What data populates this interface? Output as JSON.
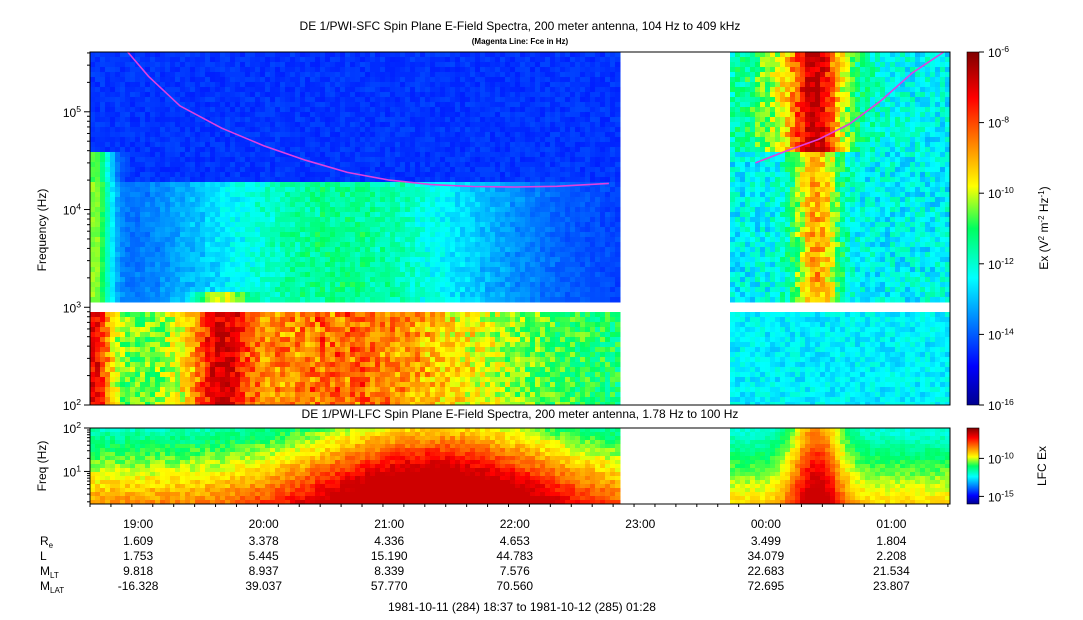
{
  "chart_data": [
    {
      "type": "heatmap",
      "title": "DE 1/PWI-SFC  Spin Plane E-Field Spectra, 200 meter antenna, 104 Hz to 409 kHz",
      "subtitle": "(Magenta Line: Fce in Hz)",
      "ylabel": "Frequency (Hz)",
      "yscale": "log",
      "ylim": [
        100,
        409000
      ],
      "y_ticks": [
        {
          "value": 100,
          "base": "10",
          "exp": "2"
        },
        {
          "value": 1000,
          "base": "10",
          "exp": "3"
        },
        {
          "value": 10000,
          "base": "10",
          "exp": "4"
        },
        {
          "value": 100000,
          "base": "10",
          "exp": "5"
        }
      ],
      "colorbar": {
        "label_parts": [
          "Ex (V",
          "2",
          " m",
          "-2",
          " Hz",
          "-1",
          ")"
        ],
        "scale": "log",
        "range": [
          1e-16,
          1e-06
        ],
        "ticks": [
          {
            "value": 1e-06,
            "base": "10",
            "exp": "-6"
          },
          {
            "value": 1e-08,
            "base": "10",
            "exp": "-8"
          },
          {
            "value": 1e-10,
            "base": "10",
            "exp": "-10"
          },
          {
            "value": 1e-12,
            "base": "10",
            "exp": "-12"
          },
          {
            "value": 1e-14,
            "base": "10",
            "exp": "-14"
          },
          {
            "value": 1e-16,
            "base": "10",
            "exp": "-16"
          }
        ]
      },
      "data_gaps": [
        [
          "22:48",
          "00:00"
        ]
      ],
      "fce_line_color": "#e040e0",
      "fce_line": {
        "segment_1": {
          "t": [
            "18:55",
            "19:05",
            "19:20",
            "19:40",
            "20:00",
            "20:20",
            "20:40",
            "21:00",
            "21:20",
            "21:40",
            "22:00",
            "22:20",
            "22:45"
          ],
          "f": [
            409000,
            230000,
            115000,
            68000,
            45000,
            32000,
            24000,
            20000,
            18000,
            17200,
            17000,
            17300,
            18500
          ]
        },
        "segment_2": {
          "t": [
            "23:55",
            "00:10",
            "00:25",
            "00:40",
            "00:55",
            "01:10",
            "01:25"
          ],
          "f": [
            30000,
            40000,
            52000,
            75000,
            130000,
            250000,
            409000
          ]
        }
      }
    },
    {
      "type": "heatmap",
      "title": "DE 1/PWI-LFC  Spin Plane E-Field Spectra, 200 meter antenna, 1.78 Hz to 100 Hz",
      "ylabel": "Freq (Hz)",
      "yscale": "log",
      "ylim": [
        1.78,
        100
      ],
      "y_ticks": [
        {
          "value": 10,
          "base": "10",
          "exp": "1"
        },
        {
          "value": 100,
          "base": "10",
          "exp": "2"
        }
      ],
      "colorbar": {
        "label": "LFC Ex",
        "scale": "log",
        "range": [
          1e-16,
          1e-06
        ],
        "ticks": [
          {
            "value": 1e-10,
            "base": "10",
            "exp": "-10"
          },
          {
            "value": 1e-15,
            "base": "10",
            "exp": "-15"
          }
        ]
      },
      "data_gaps": [
        [
          "22:48",
          "00:00"
        ]
      ]
    }
  ],
  "time_axis": {
    "start": "18:37",
    "end": "01:28",
    "tick_labels": [
      "19:00",
      "20:00",
      "21:00",
      "22:00",
      "23:00",
      "00:00",
      "01:00"
    ]
  },
  "ephemeris": {
    "rows": [
      {
        "label": "R",
        "sub": "e",
        "values": [
          "1.609",
          "3.378",
          "4.336",
          "4.653",
          "",
          "3.499",
          "1.804"
        ]
      },
      {
        "label": "L",
        "sub": "",
        "values": [
          "1.753",
          "5.445",
          "15.190",
          "44.783",
          "",
          "34.079",
          "2.208"
        ]
      },
      {
        "label": "M",
        "sub": "LT",
        "values": [
          "9.818",
          "8.937",
          "8.339",
          "7.576",
          "",
          "22.683",
          "21.534"
        ]
      },
      {
        "label": "M",
        "sub": "LAT",
        "values": [
          "-16.328",
          "39.037",
          "57.770",
          "70.560",
          "",
          "72.695",
          "23.807"
        ]
      }
    ]
  },
  "date_range": "1981-10-11 (284) 18:37 to 1981-10-12 (285) 01:28"
}
